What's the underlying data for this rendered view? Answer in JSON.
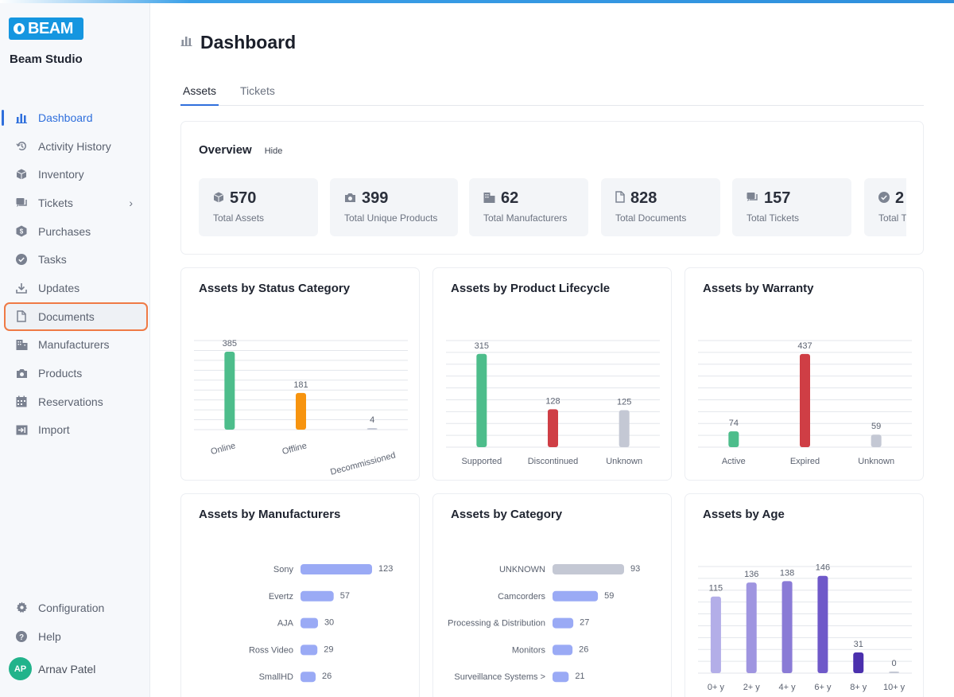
{
  "app": {
    "logo_text": "BEAM",
    "studio_name": "Beam Studio"
  },
  "sidebar": {
    "items": [
      {
        "label": "Dashboard",
        "icon": "bar-chart-icon"
      },
      {
        "label": "Activity History",
        "icon": "history-icon"
      },
      {
        "label": "Inventory",
        "icon": "box-icon"
      },
      {
        "label": "Tickets",
        "icon": "ticket-icon"
      },
      {
        "label": "Purchases",
        "icon": "dollar-badge-icon"
      },
      {
        "label": "Tasks",
        "icon": "check-circle-icon"
      },
      {
        "label": "Updates",
        "icon": "download-icon"
      },
      {
        "label": "Documents",
        "icon": "document-icon"
      },
      {
        "label": "Manufacturers",
        "icon": "building-icon"
      },
      {
        "label": "Products",
        "icon": "camera-icon"
      },
      {
        "label": "Reservations",
        "icon": "calendar-icon"
      },
      {
        "label": "Import",
        "icon": "import-icon"
      }
    ],
    "bottom": [
      {
        "label": "Configuration",
        "icon": "gear-icon"
      },
      {
        "label": "Help",
        "icon": "help-icon"
      }
    ],
    "user": {
      "initials": "AP",
      "name": "Arnav Patel"
    }
  },
  "page": {
    "title": "Dashboard"
  },
  "tabs": [
    {
      "label": "Assets"
    },
    {
      "label": "Tickets"
    }
  ],
  "overview": {
    "title": "Overview",
    "hide_label": "Hide",
    "stats": [
      {
        "value": "570",
        "label": "Total Assets",
        "icon": "box-icon"
      },
      {
        "value": "399",
        "label": "Total Unique Products",
        "icon": "camera-icon"
      },
      {
        "value": "62",
        "label": "Total Manufacturers",
        "icon": "building-icon"
      },
      {
        "value": "828",
        "label": "Total Documents",
        "icon": "document-icon"
      },
      {
        "value": "157",
        "label": "Total Tickets",
        "icon": "ticket-icon"
      },
      {
        "value": "2",
        "label": "Total T",
        "icon": "check-circle-icon"
      }
    ]
  },
  "colors": {
    "accent": "#2f6fdc",
    "green": "#4dbd8b",
    "orange": "#f7940f",
    "red": "#cf3e45",
    "gray": "#c4c8d4",
    "periwinkle": "#9aaaf5"
  },
  "chart_data": [
    {
      "type": "bar",
      "title": "Assets by Status Category",
      "categories": [
        "Online",
        "Offline",
        "Decommissioned"
      ],
      "values": [
        385,
        181,
        4
      ],
      "colors": [
        "#4dbd8b",
        "#f7940f",
        "#c4c8d4"
      ],
      "ylim": [
        0,
        440
      ],
      "xlabel_rotated": true
    },
    {
      "type": "bar",
      "title": "Assets by Product Lifecycle",
      "categories": [
        "Supported",
        "Discontinued",
        "Unknown"
      ],
      "values": [
        315,
        128,
        125
      ],
      "colors": [
        "#4dbd8b",
        "#cf3e45",
        "#c4c8d4"
      ],
      "ylim": [
        0,
        360
      ]
    },
    {
      "type": "bar",
      "title": "Assets by Warranty",
      "categories": [
        "Active",
        "Expired",
        "Unknown"
      ],
      "values": [
        74,
        437,
        59
      ],
      "colors": [
        "#4dbd8b",
        "#cf3e45",
        "#c4c8d4"
      ],
      "ylim": [
        0,
        500
      ]
    },
    {
      "type": "hbar",
      "title": "Assets by Manufacturers",
      "categories": [
        "Sony",
        "Evertz",
        "AJA",
        "Ross Video",
        "SmallHD"
      ],
      "values": [
        123,
        57,
        30,
        29,
        26
      ],
      "colors": [
        "#9aaaf5",
        "#9aaaf5",
        "#9aaaf5",
        "#9aaaf5",
        "#9aaaf5"
      ]
    },
    {
      "type": "hbar",
      "title": "Assets by Category",
      "categories": [
        "UNKNOWN",
        "Camcorders",
        "Processing & Distribution",
        "Monitors",
        "Surveillance Systems >"
      ],
      "values": [
        93,
        59,
        27,
        26,
        21
      ],
      "colors": [
        "#c4c8d4",
        "#9aaaf5",
        "#9aaaf5",
        "#9aaaf5",
        "#9aaaf5"
      ]
    },
    {
      "type": "bar",
      "title": "Assets by Age",
      "categories": [
        "0+ y",
        "2+ y",
        "4+ y",
        "6+ y",
        "8+ y",
        "10+ y"
      ],
      "values": [
        115,
        136,
        138,
        146,
        31,
        0
      ],
      "colors": [
        "#b3aee8",
        "#9f95e0",
        "#8a7bd6",
        "#6f59c9",
        "#4b30ad",
        "#c4c8d4"
      ],
      "ylim": [
        0,
        160
      ]
    }
  ]
}
